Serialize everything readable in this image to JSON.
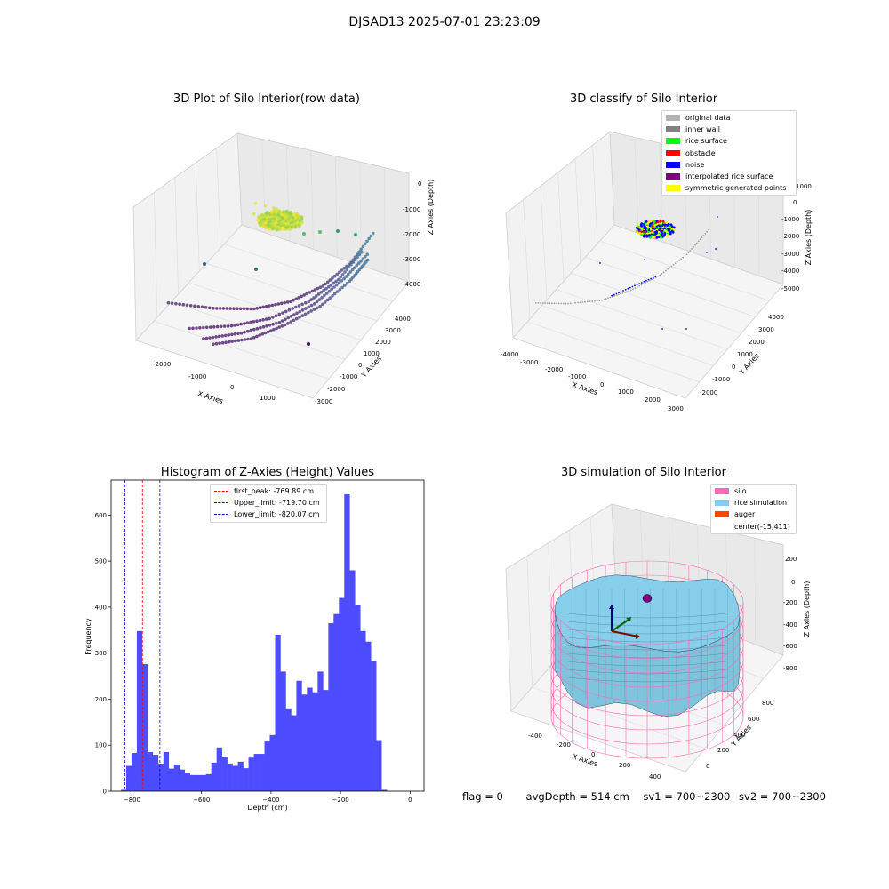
{
  "suptitle": "DJSAD13 2025-07-01 23:23:09",
  "chart_data": [
    {
      "type": "scatter",
      "title": "3D Plot of Silo Interior(row data)",
      "xlabel": "X Axies",
      "ylabel": "Y Axies",
      "zlabel": "Z Axies (Depth)",
      "x_ticks": [
        "-2000",
        "-1000",
        "0",
        "1000"
      ],
      "y_ticks": [
        "-3000",
        "-2000",
        "-1000",
        "0",
        "1000",
        "2000",
        "3000",
        "4000"
      ],
      "z_ticks": [
        "0",
        "-1000",
        "-2000",
        "-3000",
        "-4000"
      ],
      "colormap": "viridis",
      "series": [
        {
          "points": [
            [
              -2300,
              -1800,
              -4100
            ],
            [
              -1500,
              -1000,
              -4300
            ],
            [
              -800,
              -200,
              -4400
            ],
            [
              -200,
              600,
              -4300
            ],
            [
              300,
              1400,
              -4000
            ],
            [
              700,
              2200,
              -3500
            ],
            [
              1000,
              3000,
              -2800
            ]
          ]
        },
        {
          "points": [
            [
              -1600,
              -2400,
              -4300
            ],
            [
              -900,
              -1500,
              -4350
            ],
            [
              -300,
              -600,
              -4300
            ],
            [
              300,
              400,
              -4000
            ],
            [
              700,
              1300,
              -3600
            ],
            [
              1000,
              2200,
              -3000
            ]
          ]
        },
        {
          "points": [
            [
              -1200,
              -2600,
              -4350
            ],
            [
              -600,
              -1700,
              -4350
            ],
            [
              0,
              -800,
              -4200
            ],
            [
              500,
              200,
              -3900
            ],
            [
              900,
              1100,
              -3400
            ],
            [
              1200,
              2000,
              -2900
            ]
          ]
        },
        {
          "points": [
            [
              -900,
              -2800,
              -4300
            ],
            [
              -300,
              -1900,
              -4300
            ],
            [
              200,
              -1000,
              -4100
            ],
            [
              700,
              0,
              -3800
            ],
            [
              1100,
              900,
              -3300
            ],
            [
              1300,
              1700,
              -2900
            ]
          ]
        },
        {
          "points": [
            [
              -200,
              -2000,
              -500
            ],
            [
              -100,
              -1500,
              -450
            ],
            [
              100,
              -1300,
              -550
            ],
            [
              200,
              -1700,
              -500
            ],
            [
              0,
              -1200,
              -600
            ],
            [
              -300,
              -1600,
              -400
            ],
            [
              150,
              -1900,
              -450
            ],
            [
              -50,
              -1400,
              -700
            ]
          ]
        }
      ]
    },
    {
      "type": "scatter",
      "title": "3D classify of Silo Interior",
      "xlabel": "X Axies",
      "ylabel": "Y Axies",
      "zlabel": "Z Axies (Depth)",
      "x_ticks": [
        "-4000",
        "-3000",
        "-2000",
        "-1000",
        "0",
        "1000",
        "2000",
        "3000"
      ],
      "y_ticks": [
        "-2000",
        "-1000",
        "0",
        "1000",
        "2000",
        "3000",
        "4000"
      ],
      "z_ticks": [
        "1000",
        "0",
        "-1000",
        "-2000",
        "-3000",
        "-4000",
        "-5000"
      ],
      "legend": [
        {
          "label": "original data",
          "color": "#b3b3b3"
        },
        {
          "label": "inner wall",
          "color": "#808080"
        },
        {
          "label": "rice surface",
          "color": "#00ff00"
        },
        {
          "label": "obstacle",
          "color": "#ff0000"
        },
        {
          "label": "noise",
          "color": "#0000ff"
        },
        {
          "label": "interpolated rice surface",
          "color": "#800080"
        },
        {
          "label": "symmetric generated points",
          "color": "#ffff00"
        }
      ],
      "legend_position": "top-right"
    },
    {
      "type": "bar",
      "title": "Histogram of Z-Axies (Height) Values",
      "xlabel": "Depth (cm)",
      "ylabel": "Frequency",
      "bin_start": -832,
      "bin_width": 15.3,
      "values": [
        3,
        55,
        83,
        348,
        276,
        85,
        79,
        60,
        85,
        49,
        58,
        47,
        40,
        35,
        35,
        35,
        37,
        62,
        95,
        75,
        60,
        55,
        64,
        50,
        73,
        81,
        81,
        108,
        122,
        340,
        260,
        180,
        165,
        240,
        210,
        225,
        215,
        260,
        220,
        365,
        385,
        420,
        645,
        480,
        405,
        348,
        325,
        283,
        111,
        3
      ],
      "xlim": [
        -860,
        40
      ],
      "ylim": [
        0,
        676
      ],
      "x_ticks": [
        -800,
        -600,
        -400,
        -200,
        0
      ],
      "y_ticks": [
        0,
        100,
        200,
        300,
        400,
        500,
        600
      ],
      "bar_color": "#4d4dff",
      "vlines": [
        {
          "label": "first_peak: -769.89 cm",
          "x": -769.89,
          "color": "#ff0000"
        },
        {
          "label": "Upper_limit: -719.70 cm",
          "x": -719.7,
          "color": "#0000cc"
        },
        {
          "label": "Lower_limit: -820.07 cm",
          "x": -820.07,
          "color": "#0000cc"
        }
      ],
      "legend_position": "top-center"
    },
    {
      "type": "surface",
      "title": "3D simulation of Silo Interior",
      "xlabel": "X Axies",
      "ylabel": "Y Axies",
      "zlabel": "Z Axies (Depth)",
      "x_ticks": [
        "-400",
        "-200",
        "0",
        "200",
        "400"
      ],
      "y_ticks": [
        "0",
        "200",
        "400",
        "600",
        "800"
      ],
      "z_ticks": [
        "200",
        "0",
        "-200",
        "-400",
        "-600",
        "-800"
      ],
      "legend": [
        {
          "label": "silo",
          "color": "#ff69b4"
        },
        {
          "label": "rice simulation",
          "color": "#87ceeb"
        },
        {
          "label": "auger",
          "color": "#ff4500"
        },
        {
          "label": "center(-15,411)",
          "color": ""
        }
      ],
      "legend_position": "top-right"
    }
  ],
  "footer": {
    "flag": "flag = 0",
    "avg_depth": "avgDepth = 514 cm",
    "sv1": "sv1 = 700~2300",
    "sv2": "sv2 = 700~2300"
  }
}
